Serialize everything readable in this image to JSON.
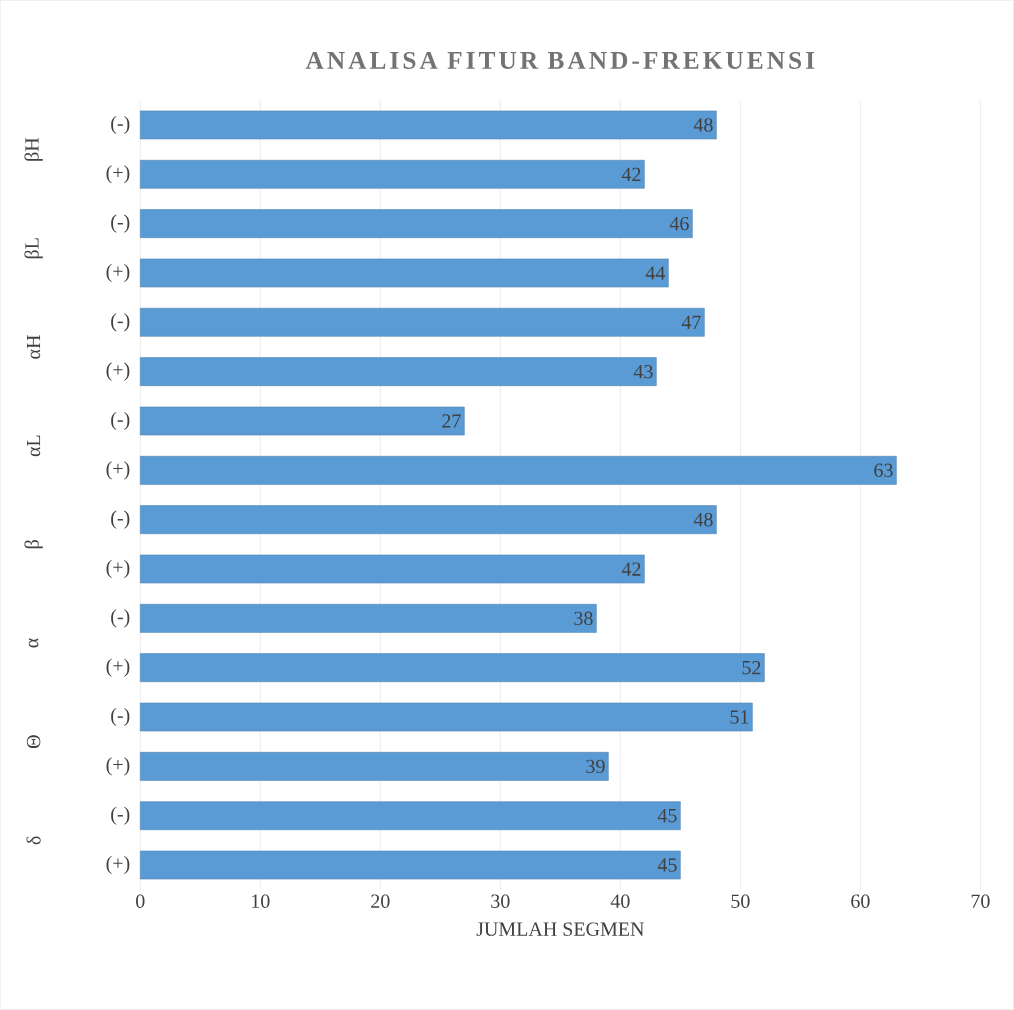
{
  "chart_data": {
    "type": "bar",
    "orientation": "horizontal",
    "title": "ANALISA FITUR BAND-FREKUENSI",
    "xlabel": "JUMLAH SEGMEN",
    "categories": [
      "(-)",
      "(+)",
      "(-)",
      "(+)",
      "(-)",
      "(+)",
      "(-)",
      "(+)",
      "(-)",
      "(+)",
      "(-)",
      "(+)",
      "(-)",
      "(+)",
      "(-)",
      "(+)"
    ],
    "values": [
      48,
      42,
      46,
      44,
      47,
      43,
      27,
      63,
      48,
      42,
      38,
      52,
      51,
      39,
      45,
      45
    ],
    "color": "#5b9bd5",
    "annotations": [
      "βH",
      "βL",
      "αH",
      "αL",
      "β",
      "α",
      "Θ",
      "δ"
    ],
    "xlim": [
      0,
      70
    ],
    "xticks": [
      0,
      10,
      20,
      30,
      40,
      50,
      60,
      70
    ],
    "grid": "x",
    "data_labels": true
  }
}
